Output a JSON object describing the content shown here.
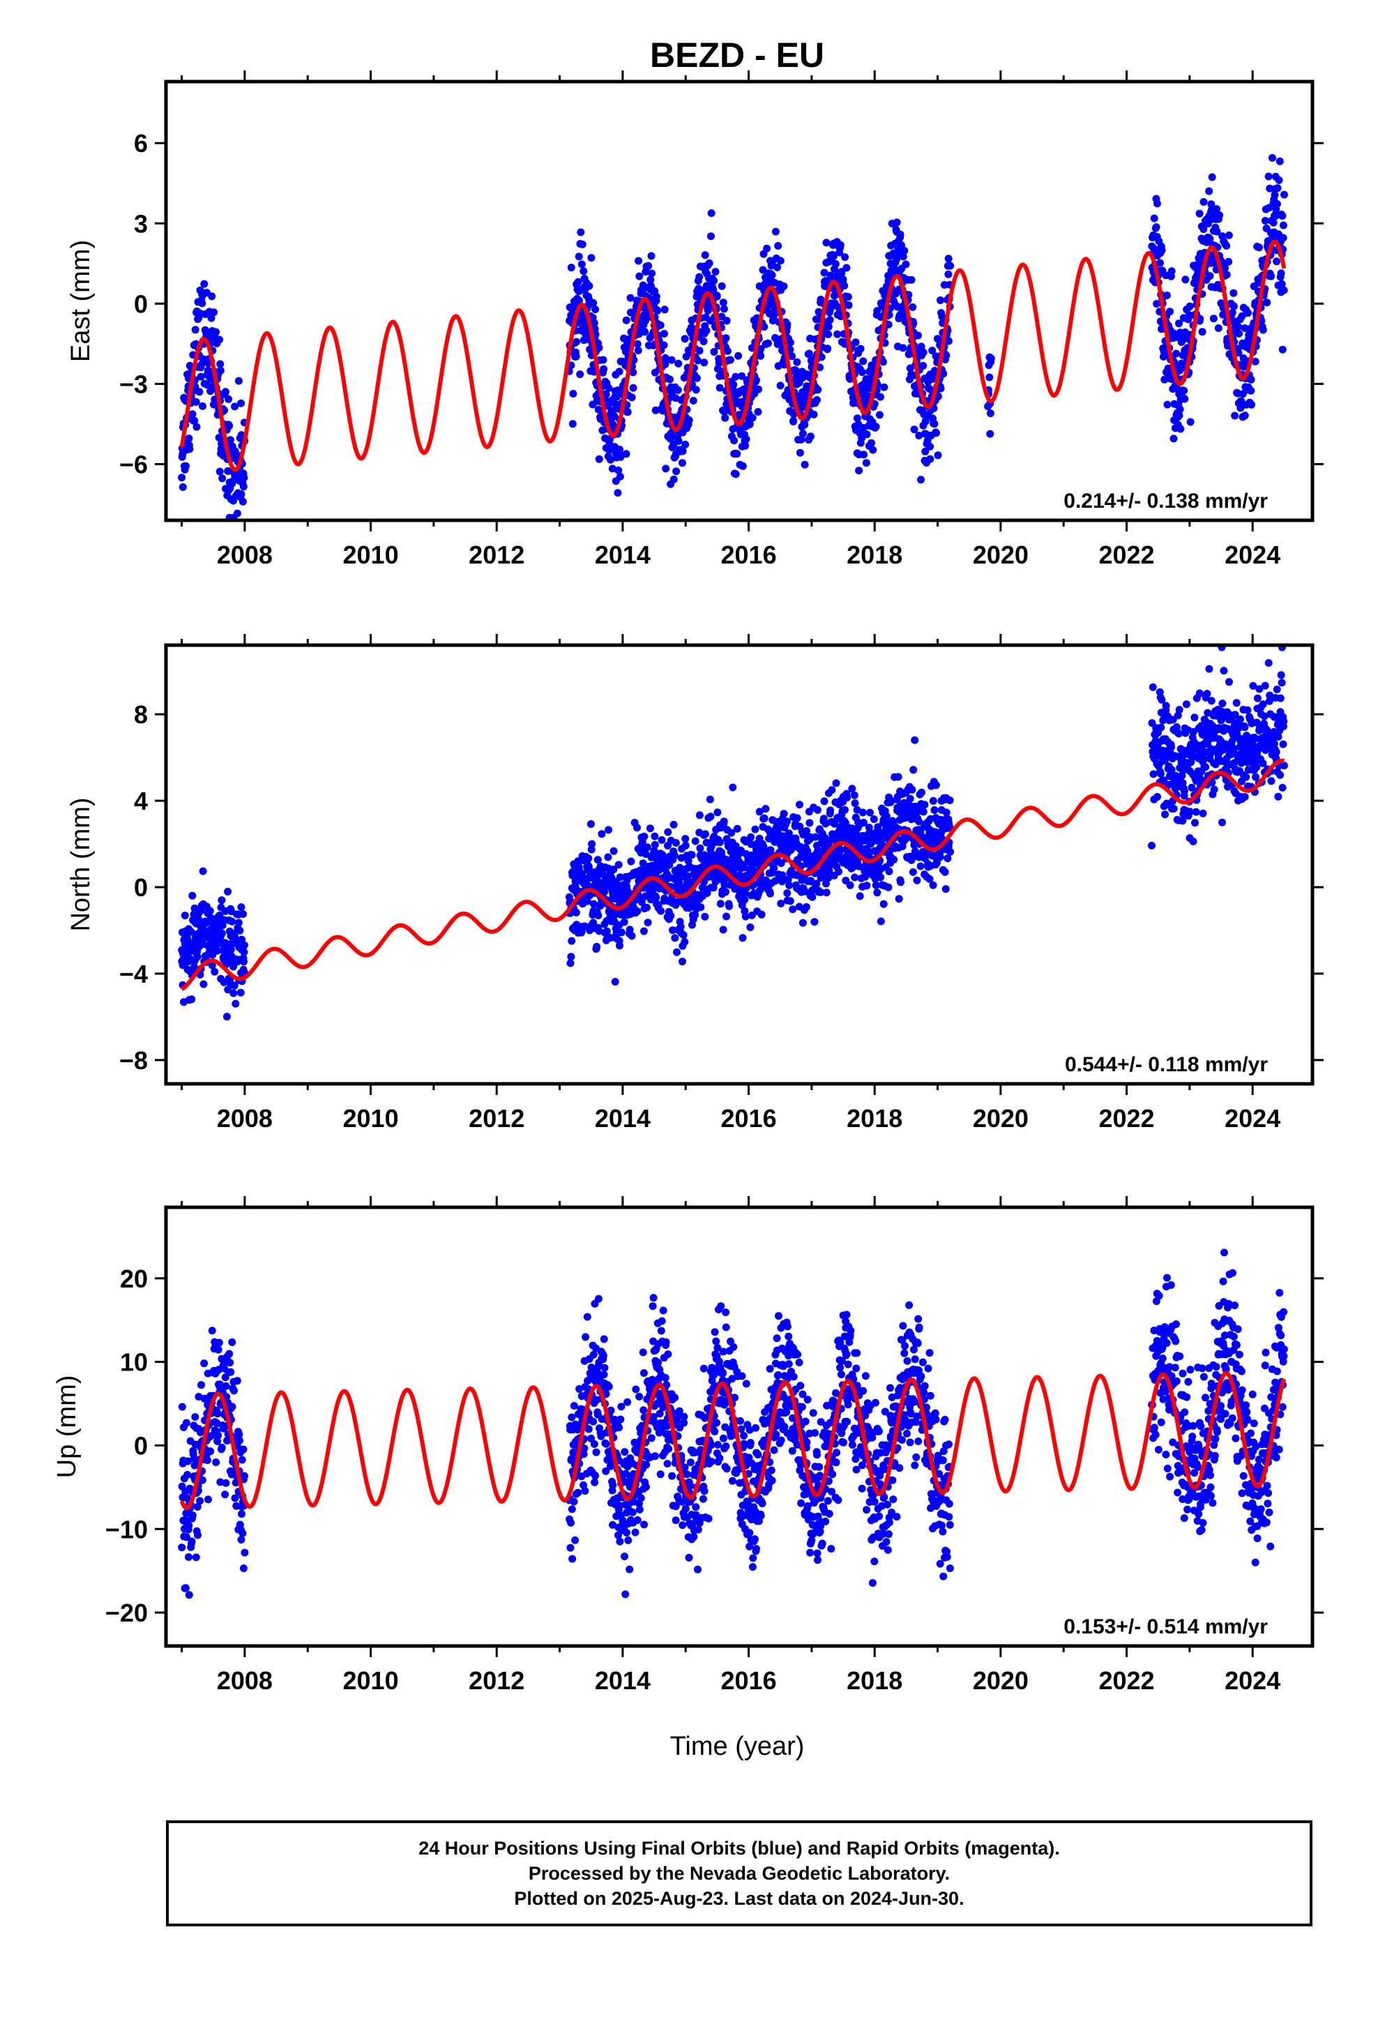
{
  "title": "BEZD - EU",
  "xlabel": "Time (year)",
  "x_ticks": [
    "2008",
    "2010",
    "2012",
    "2014",
    "2016",
    "2018",
    "2020",
    "2022",
    "2024"
  ],
  "colors": {
    "data": "#0000ff",
    "model": "#ff0000",
    "frame": "#000000"
  },
  "footer": {
    "line1": "24 Hour Positions Using Final Orbits (blue) and Rapid Orbits (magenta).",
    "line2": "Processed by the Nevada Geodetic Laboratory.",
    "line3": "Plotted on 2025-Aug-23. Last data on 2024-Jun-30."
  },
  "chart_data": [
    {
      "type": "scatter",
      "component": "east",
      "ylabel": "East (mm)",
      "rate_label": "0.214+/- 0.138 mm/yr",
      "xlim": [
        2006.75,
        2024.95
      ],
      "ylim": [
        -8.1,
        8.3
      ],
      "y_ticks": [
        6,
        3,
        0,
        -3,
        -6
      ],
      "model": {
        "type": "line",
        "start_value": -3.9,
        "rate": 0.214,
        "annual_amplitude": 2.5,
        "peak_phase": 0.35,
        "t0": 2007.0,
        "t1": 2024.5
      },
      "data_segments": [
        {
          "start": 2007.0,
          "end": 2008.0,
          "offset": 0.0,
          "scatter": 1.1
        },
        {
          "start": 2013.15,
          "end": 2019.2,
          "offset": 0.0,
          "scatter": 1.0
        },
        {
          "start": 2019.8,
          "end": 2019.85,
          "offset": 0.0,
          "scatter": 1.0
        },
        {
          "start": 2022.4,
          "end": 2024.5,
          "offset": 0.3,
          "scatter": 1.2
        }
      ]
    },
    {
      "type": "scatter",
      "component": "north",
      "ylabel": "North (mm)",
      "rate_label": "0.544+/- 0.118 mm/yr",
      "xlim": [
        2006.75,
        2024.95
      ],
      "ylim": [
        -9.1,
        11.2
      ],
      "y_ticks": [
        8,
        4,
        0,
        -4,
        -8
      ],
      "model": {
        "type": "line",
        "start_value": -4.2,
        "rate": 0.544,
        "annual_amplitude": 0.55,
        "peak_phase": 0.45,
        "t0": 2007.0,
        "t1": 2024.5
      },
      "data_segments": [
        {
          "start": 2007.0,
          "end": 2008.0,
          "offset": 1.2,
          "scatter": 1.0
        },
        {
          "start": 2013.15,
          "end": 2019.2,
          "offset": 0.3,
          "scatter": 1.1
        },
        {
          "start": 2022.4,
          "end": 2024.5,
          "offset": 1.6,
          "scatter": 1.4
        }
      ]
    },
    {
      "type": "scatter",
      "component": "up",
      "ylabel": "Up (mm)",
      "rate_label": "0.153+/- 0.514 mm/yr",
      "xlim": [
        2006.75,
        2024.95
      ],
      "ylim": [
        -24,
        28.5
      ],
      "y_ticks": [
        20,
        10,
        0,
        -10,
        -20
      ],
      "model": {
        "type": "line",
        "start_value": -0.7,
        "rate": 0.153,
        "annual_amplitude": 6.8,
        "peak_phase": 0.58,
        "t0": 2007.0,
        "t1": 2024.5
      },
      "data_segments": [
        {
          "start": 2007.0,
          "end": 2008.0,
          "offset": 0.0,
          "scatter": 4.5
        },
        {
          "start": 2013.15,
          "end": 2019.2,
          "offset": 0.0,
          "scatter": 4.2
        },
        {
          "start": 2022.4,
          "end": 2024.5,
          "offset": 1.5,
          "scatter": 5.0
        }
      ]
    }
  ]
}
